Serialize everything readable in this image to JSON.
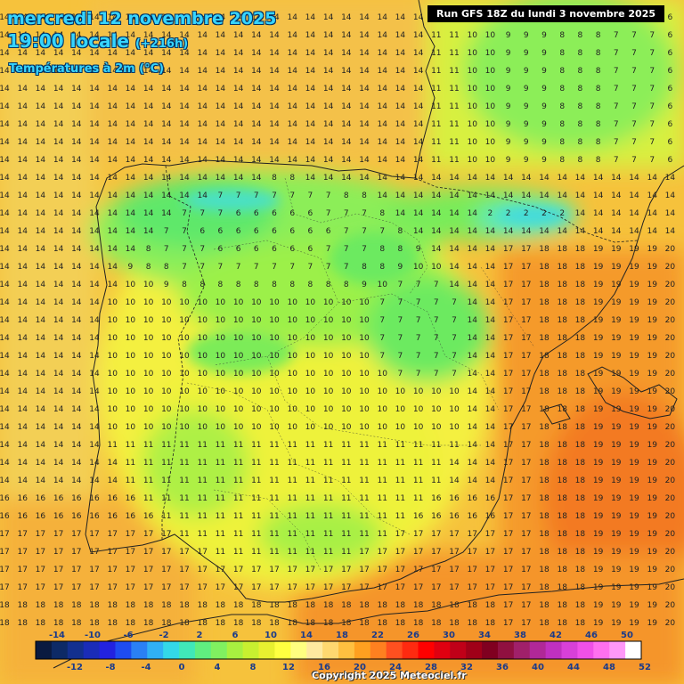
{
  "header": {
    "date": "mercredi 12 novembre 2025",
    "time": "19:00 locale",
    "lead": "(+216h)",
    "variable": "Températures à 2m (°C)",
    "run": "Run GFS 18Z du lundi 3 novembre 2025"
  },
  "copyright": "Copyright 2025 Meteociel.fr",
  "legend": {
    "top_labels": [
      "-14",
      "-10",
      "-6",
      "-2",
      "2",
      "6",
      "10",
      "14",
      "18",
      "22",
      "26",
      "30",
      "34",
      "38",
      "42",
      "46",
      "50"
    ],
    "bottom_labels": [
      "-12",
      "-8",
      "-4",
      "0",
      "4",
      "8",
      "12",
      "16",
      "20",
      "24",
      "28",
      "32",
      "36",
      "40",
      "44",
      "48",
      "52"
    ],
    "colors": [
      "#0a1a40",
      "#0d2a66",
      "#13308f",
      "#1a2cb8",
      "#2222e0",
      "#1e4cf0",
      "#2a80f5",
      "#30b0f5",
      "#33d8e8",
      "#40e8b8",
      "#60ee80",
      "#80f060",
      "#a8f040",
      "#c8f030",
      "#e8f030",
      "#ffff40",
      "#ffff80",
      "#ffe9a0",
      "#ffd870",
      "#ffc040",
      "#ffa020",
      "#ff8020",
      "#ff5020",
      "#ff2a10",
      "#ff0000",
      "#e00010",
      "#c00018",
      "#a00018",
      "#800020",
      "#901040",
      "#a0206a",
      "#b02898",
      "#c030c0",
      "#d840d8",
      "#f050e8",
      "#ff70f0",
      "#ff98f8",
      "#ffffff"
    ]
  },
  "map_layers": [
    "temperature-field",
    "coastline",
    "borders",
    "region-borders",
    "grid-values"
  ]
}
